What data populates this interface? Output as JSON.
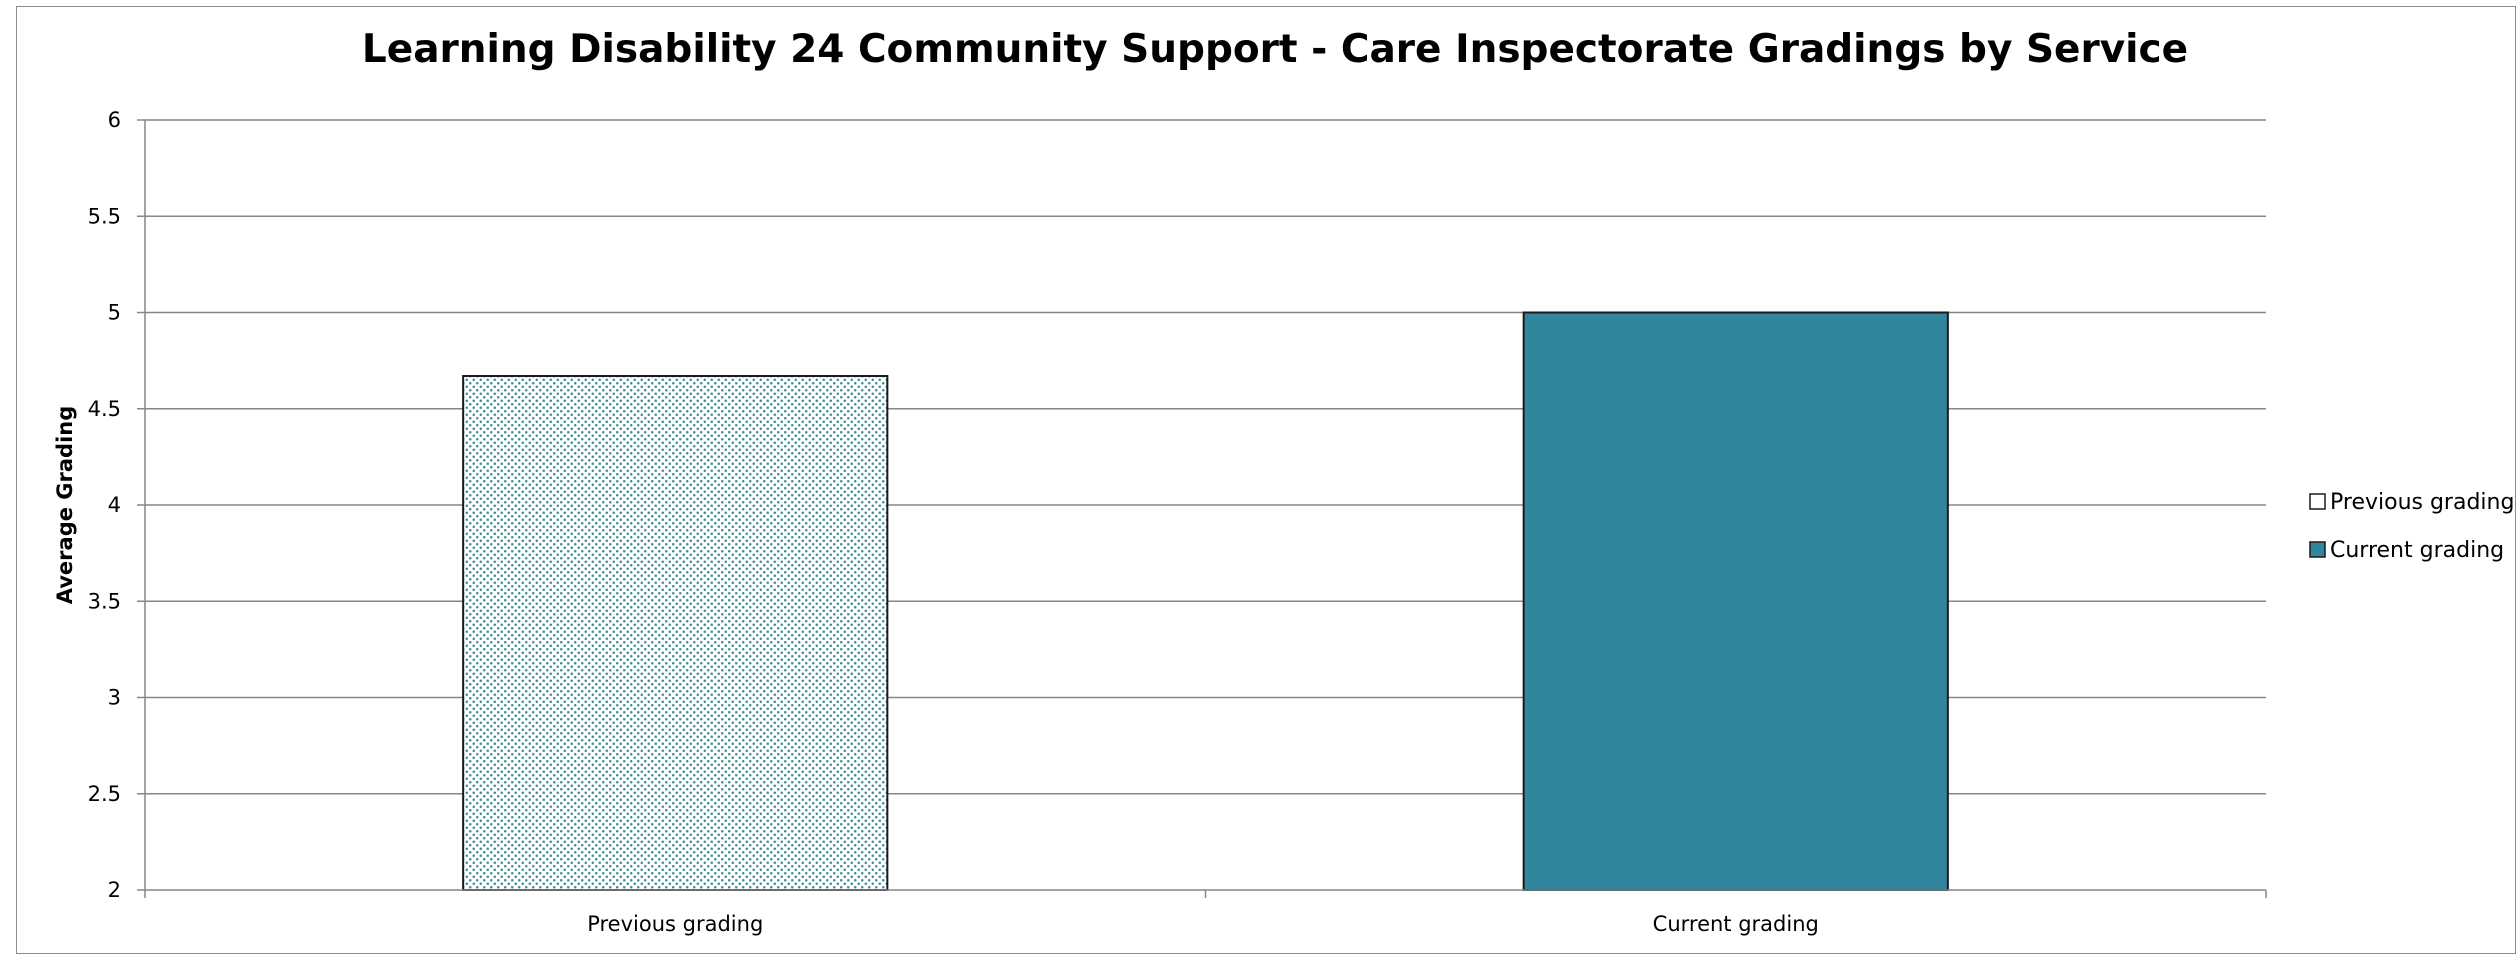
{
  "chart_data": {
    "type": "bar",
    "title": "Learning Disability 24 Community Support - Care Inspectorate Gradings by Service",
    "xlabel": "",
    "ylabel": "Average Grading",
    "categories": [
      "Previous grading",
      "Current grading"
    ],
    "values": [
      4.67,
      5.0
    ],
    "ylim": [
      2,
      6
    ],
    "yticks": [
      "2",
      "2.5",
      "3",
      "3.5",
      "4",
      "4.5",
      "5",
      "5.5",
      "6"
    ],
    "ytick_values": [
      2,
      2.5,
      3,
      3.5,
      4,
      4.5,
      5,
      5.5,
      6
    ],
    "grid": true,
    "legend_position": "right",
    "legend": [
      "Previous grading",
      "Current grading"
    ],
    "colors": {
      "previous_fill": "#ffffff",
      "previous_dots": "#3a8a98",
      "current_fill": "#31859c",
      "bar_border": "#1a1a1a",
      "gridline": "#868686",
      "axis": "#868686"
    }
  }
}
